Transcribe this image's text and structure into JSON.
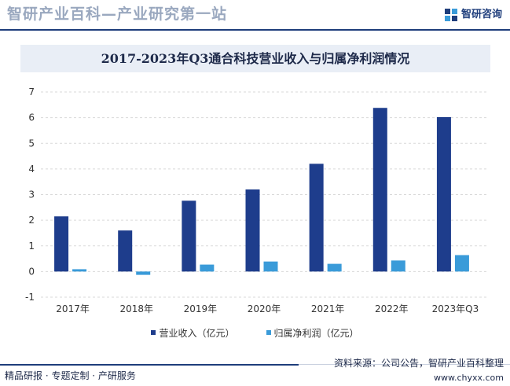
{
  "header": {
    "title": "智研产业百科—产业研究第一站",
    "brand": "智研咨询"
  },
  "chart_data": {
    "type": "bar",
    "title": "2017-2023年Q3通合科技营业收入与归属净利润情况",
    "categories": [
      "2017年",
      "2018年",
      "2019年",
      "2020年",
      "2021年",
      "2022年",
      "2023年Q3"
    ],
    "series": [
      {
        "name": "营业收入（亿元）",
        "color": "#1e3d8c",
        "values": [
          2.15,
          1.6,
          2.76,
          3.2,
          4.2,
          6.38,
          6.02
        ]
      },
      {
        "name": "归属净利润（亿元）",
        "color": "#3a9bd9",
        "values": [
          0.09,
          -0.13,
          0.27,
          0.39,
          0.3,
          0.43,
          0.64
        ]
      }
    ],
    "yticks": [
      "7",
      "6",
      "5",
      "4",
      "3",
      "2",
      "1",
      "0",
      "-1"
    ],
    "ylim": [
      -1,
      7
    ],
    "grid": true,
    "legend": "bottom"
  },
  "footer": {
    "left": "精品研报 · 专题定制 · 产研服务",
    "source": "资料来源：公司公告，智研产业百科整理",
    "url": "www.chyxx.com"
  }
}
